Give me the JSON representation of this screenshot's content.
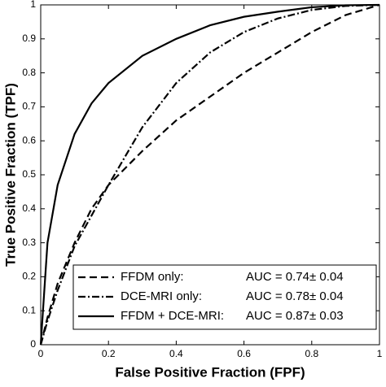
{
  "chart_data": {
    "type": "line",
    "xlabel": "False Positive Fraction (FPF)",
    "ylabel": "True Positive Fraction (TPF)",
    "x": [
      0,
      0.02,
      0.05,
      0.1,
      0.15,
      0.2,
      0.3,
      0.4,
      0.5,
      0.6,
      0.7,
      0.8,
      0.9,
      1
    ],
    "series": [
      {
        "name": "FFDM only:",
        "auc": "AUC = 0.74± 0.04",
        "color": "#000000",
        "dash": "dashed",
        "values": [
          0,
          0.08,
          0.18,
          0.3,
          0.4,
          0.47,
          0.57,
          0.66,
          0.73,
          0.8,
          0.86,
          0.92,
          0.97,
          1
        ]
      },
      {
        "name": "DCE-MRI only:",
        "auc": "AUC = 0.78± 0.04",
        "color": "#000000",
        "dash": "dashdot",
        "values": [
          0,
          0.07,
          0.16,
          0.29,
          0.38,
          0.47,
          0.64,
          0.77,
          0.86,
          0.92,
          0.96,
          0.985,
          0.997,
          1
        ]
      },
      {
        "name": "FFDM + DCE-MRI:",
        "auc": "AUC = 0.87± 0.03",
        "color": "#000000",
        "dash": "solid",
        "values": [
          0,
          0.3,
          0.47,
          0.62,
          0.71,
          0.77,
          0.85,
          0.9,
          0.94,
          0.965,
          0.98,
          0.993,
          0.999,
          1
        ]
      }
    ],
    "xlim": [
      0,
      1
    ],
    "ylim": [
      0,
      1
    ],
    "xticks": [
      0,
      0.2,
      0.4,
      0.6,
      0.8,
      1
    ],
    "yticks": [
      0,
      0.1,
      0.2,
      0.3,
      0.4,
      0.5,
      0.6,
      0.7,
      0.8,
      0.9,
      1
    ],
    "legend": "lower right"
  }
}
